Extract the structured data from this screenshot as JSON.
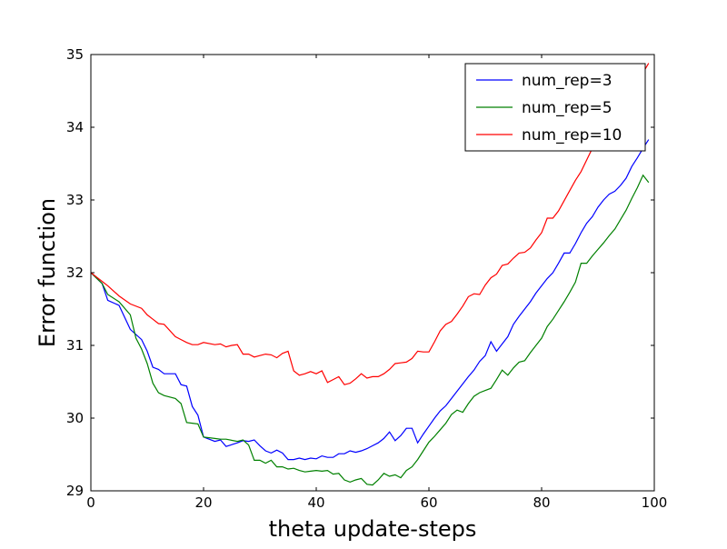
{
  "chart_data": {
    "type": "line",
    "title": "",
    "xlabel": "theta update-steps",
    "ylabel": "Error function",
    "xlim": [
      0,
      100
    ],
    "ylim": [
      29,
      35
    ],
    "xticks": [
      0,
      20,
      40,
      60,
      80,
      100
    ],
    "yticks": [
      29,
      30,
      31,
      32,
      33,
      34,
      35
    ],
    "grid": false,
    "legend_position": "top-right",
    "series": [
      {
        "name": "num_rep=3",
        "color": "#0000ff",
        "x": [
          0,
          2,
          3,
          5,
          7,
          9,
          10,
          11,
          12,
          13,
          15,
          16,
          17,
          18,
          19,
          20,
          22,
          23,
          24,
          26,
          27,
          28,
          29,
          30,
          31,
          32,
          33,
          34,
          35,
          36,
          37,
          38,
          39,
          40,
          41,
          42,
          43,
          44,
          45,
          46,
          47,
          48,
          49,
          50,
          51,
          52,
          53,
          54,
          55,
          56,
          57,
          58,
          59,
          60,
          61,
          62,
          63,
          64,
          65,
          66,
          67,
          68,
          69,
          70,
          71,
          72,
          73,
          74,
          75,
          76,
          77,
          78,
          79,
          80,
          81,
          82,
          83,
          84,
          85,
          86,
          87,
          88,
          89,
          90,
          91,
          92,
          93,
          94,
          95,
          96,
          97,
          98,
          99
        ],
        "y": [
          32.0,
          31.85,
          31.62,
          31.55,
          31.22,
          31.08,
          30.92,
          30.7,
          30.67,
          30.61,
          30.61,
          30.46,
          30.44,
          30.16,
          30.04,
          29.74,
          29.68,
          29.7,
          29.61,
          29.66,
          29.69,
          29.68,
          29.7,
          29.62,
          29.55,
          29.52,
          29.56,
          29.52,
          29.43,
          29.43,
          29.45,
          29.43,
          29.45,
          29.44,
          29.48,
          29.46,
          29.46,
          29.51,
          29.51,
          29.55,
          29.53,
          29.55,
          29.58,
          29.62,
          29.66,
          29.72,
          29.81,
          29.69,
          29.76,
          29.86,
          29.86,
          29.66,
          29.78,
          29.89,
          30.0,
          30.1,
          30.17,
          30.27,
          30.37,
          30.47,
          30.57,
          30.66,
          30.78,
          30.86,
          31.05,
          30.92,
          31.02,
          31.12,
          31.29,
          31.4,
          31.5,
          31.6,
          31.72,
          31.82,
          31.92,
          32.0,
          32.13,
          32.27,
          32.27,
          32.4,
          32.55,
          32.68,
          32.77,
          32.9,
          33.0,
          33.08,
          33.12,
          33.2,
          33.3,
          33.46,
          33.58,
          33.71,
          33.83
        ]
      },
      {
        "name": "num_rep=5",
        "color": "#008000",
        "x": [
          0,
          2,
          3,
          5,
          7,
          8,
          9,
          10,
          11,
          12,
          13,
          15,
          16,
          17,
          18,
          19,
          20,
          22,
          23,
          24,
          26,
          27,
          28,
          29,
          30,
          31,
          32,
          33,
          34,
          35,
          36,
          37,
          38,
          39,
          40,
          41,
          42,
          43,
          44,
          45,
          46,
          47,
          48,
          49,
          50,
          51,
          52,
          53,
          54,
          55,
          56,
          57,
          58,
          59,
          60,
          61,
          62,
          63,
          64,
          65,
          66,
          67,
          68,
          69,
          70,
          71,
          72,
          73,
          74,
          75,
          76,
          77,
          78,
          79,
          80,
          81,
          82,
          83,
          84,
          85,
          86,
          87,
          88,
          89,
          90,
          91,
          92,
          93,
          94,
          95,
          96,
          97,
          98,
          99
        ],
        "y": [
          32.0,
          31.85,
          31.7,
          31.6,
          31.42,
          31.1,
          30.95,
          30.75,
          30.48,
          30.35,
          30.31,
          30.27,
          30.2,
          29.94,
          29.93,
          29.92,
          29.74,
          29.72,
          29.71,
          29.71,
          29.68,
          29.7,
          29.63,
          29.42,
          29.42,
          29.38,
          29.42,
          29.33,
          29.33,
          29.3,
          29.31,
          29.28,
          29.26,
          29.27,
          29.28,
          29.27,
          29.28,
          29.23,
          29.24,
          29.15,
          29.12,
          29.15,
          29.17,
          29.09,
          29.08,
          29.15,
          29.24,
          29.2,
          29.22,
          29.18,
          29.28,
          29.33,
          29.43,
          29.55,
          29.67,
          29.75,
          29.84,
          29.93,
          30.05,
          30.11,
          30.08,
          30.2,
          30.3,
          30.35,
          30.38,
          30.41,
          30.53,
          30.66,
          30.59,
          30.69,
          30.77,
          30.79,
          30.9,
          31.0,
          31.1,
          31.26,
          31.36,
          31.48,
          31.6,
          31.73,
          31.87,
          32.13,
          32.13,
          32.23,
          32.32,
          32.41,
          32.51,
          32.6,
          32.73,
          32.86,
          33.02,
          33.17,
          33.34,
          33.24
        ]
      },
      {
        "name": "num_rep=10",
        "color": "#ff0000",
        "x": [
          0,
          2,
          3,
          5,
          7,
          9,
          10,
          11,
          12,
          13,
          15,
          16,
          17,
          18,
          19,
          20,
          22,
          23,
          24,
          25,
          26,
          27,
          28,
          29,
          30,
          31,
          32,
          33,
          34,
          35,
          36,
          37,
          38,
          39,
          40,
          41,
          42,
          43,
          44,
          45,
          46,
          47,
          48,
          49,
          50,
          51,
          52,
          53,
          54,
          55,
          56,
          57,
          58,
          59,
          60,
          61,
          62,
          63,
          64,
          65,
          66,
          67,
          68,
          69,
          70,
          71,
          72,
          73,
          74,
          75,
          76,
          77,
          78,
          79,
          80,
          81,
          82,
          83,
          84,
          85,
          86,
          87,
          88,
          89,
          90,
          91,
          92,
          93,
          94,
          95,
          96,
          97,
          98,
          99
        ],
        "y": [
          32.0,
          31.88,
          31.82,
          31.68,
          31.57,
          31.51,
          31.42,
          31.36,
          31.3,
          31.29,
          31.12,
          31.08,
          31.04,
          31.01,
          31.01,
          31.04,
          31.01,
          31.02,
          30.98,
          31.0,
          31.01,
          30.88,
          30.88,
          30.84,
          30.86,
          30.88,
          30.87,
          30.83,
          30.89,
          30.92,
          30.65,
          30.59,
          30.61,
          30.64,
          30.61,
          30.65,
          30.49,
          30.53,
          30.57,
          30.46,
          30.48,
          30.54,
          30.61,
          30.55,
          30.57,
          30.57,
          30.61,
          30.67,
          30.75,
          30.76,
          30.77,
          30.82,
          30.92,
          30.91,
          30.91,
          31.05,
          31.2,
          31.29,
          31.33,
          31.43,
          31.54,
          31.67,
          31.71,
          31.7,
          31.83,
          31.93,
          31.98,
          32.1,
          32.12,
          32.2,
          32.27,
          32.28,
          32.34,
          32.45,
          32.55,
          32.75,
          32.75,
          32.85,
          32.99,
          33.13,
          33.27,
          33.39,
          33.55,
          33.71,
          33.85,
          33.97,
          34.06,
          34.14,
          34.23,
          34.32,
          34.43,
          34.58,
          34.75,
          34.88
        ]
      }
    ]
  }
}
